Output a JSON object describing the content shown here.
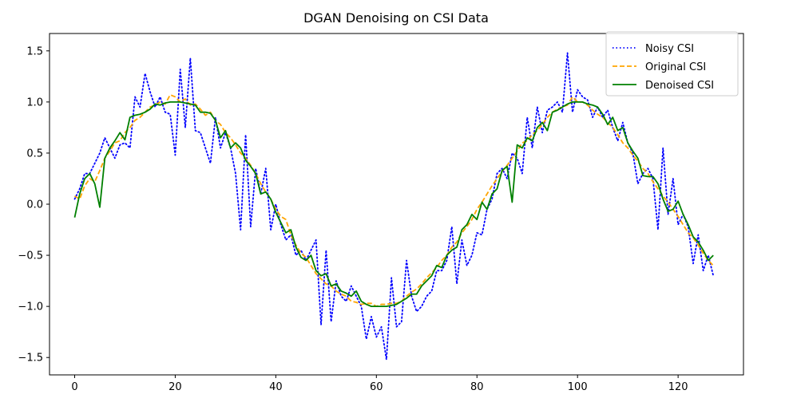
{
  "chart_data": {
    "type": "line",
    "title": "DGAN Denoising on CSI Data",
    "xlabel": "",
    "ylabel": "",
    "xlim": [
      -5,
      133
    ],
    "ylim": [
      -1.67,
      1.67
    ],
    "xticks": [
      0,
      20,
      40,
      60,
      80,
      100,
      120
    ],
    "yticks": [
      -1.5,
      -1.0,
      -0.5,
      0.0,
      0.5,
      1.0,
      1.5
    ],
    "xtick_labels": [
      "0",
      "20",
      "40",
      "60",
      "80",
      "100",
      "120"
    ],
    "ytick_labels": [
      "−1.5",
      "−1.0",
      "−0.5",
      "0.0",
      "0.5",
      "1.0",
      "1.5"
    ],
    "grid": false,
    "legend_position": "top-right",
    "series": [
      {
        "name": "Noisy CSI",
        "color": "#0000ff",
        "style": "dotted",
        "x": [
          0,
          1,
          2,
          3,
          4,
          5,
          6,
          7,
          8,
          9,
          10,
          11,
          12,
          13,
          14,
          15,
          16,
          17,
          18,
          19,
          20,
          21,
          22,
          23,
          24,
          25,
          26,
          27,
          28,
          29,
          30,
          31,
          32,
          33,
          34,
          35,
          36,
          37,
          38,
          39,
          40,
          41,
          42,
          43,
          44,
          45,
          46,
          47,
          48,
          49,
          50,
          51,
          52,
          53,
          54,
          55,
          56,
          57,
          58,
          59,
          60,
          61,
          62,
          63,
          64,
          65,
          66,
          67,
          68,
          69,
          70,
          71,
          72,
          73,
          74,
          75,
          76,
          77,
          78,
          79,
          80,
          81,
          82,
          83,
          84,
          85,
          86,
          87,
          88,
          89,
          90,
          91,
          92,
          93,
          94,
          95,
          96,
          97,
          98,
          99,
          100,
          101,
          102,
          103,
          104,
          105,
          106,
          107,
          108,
          109,
          110,
          111,
          112,
          113,
          114,
          115,
          116,
          117,
          118,
          119,
          120,
          121,
          122,
          123,
          124,
          125,
          126,
          127
        ],
        "y": [
          0.05,
          0.15,
          0.3,
          0.3,
          0.4,
          0.5,
          0.65,
          0.55,
          0.45,
          0.58,
          0.6,
          0.55,
          1.05,
          0.95,
          1.28,
          1.1,
          0.95,
          1.05,
          0.9,
          0.88,
          0.48,
          1.32,
          0.75,
          1.43,
          0.72,
          0.7,
          0.55,
          0.4,
          0.85,
          0.55,
          0.7,
          0.55,
          0.3,
          -0.25,
          0.68,
          -0.22,
          0.35,
          0.1,
          0.35,
          -0.25,
          0.0,
          -0.2,
          -0.35,
          -0.3,
          -0.5,
          -0.45,
          -0.55,
          -0.45,
          -0.35,
          -1.18,
          -0.45,
          -1.15,
          -0.75,
          -0.9,
          -0.95,
          -0.8,
          -0.9,
          -1.0,
          -1.32,
          -1.1,
          -1.3,
          -1.2,
          -1.52,
          -0.72,
          -1.2,
          -1.15,
          -0.55,
          -0.9,
          -1.05,
          -1.0,
          -0.9,
          -0.85,
          -0.65,
          -0.65,
          -0.55,
          -0.22,
          -0.78,
          -0.35,
          -0.6,
          -0.5,
          -0.28,
          -0.3,
          -0.05,
          0.05,
          0.3,
          0.35,
          0.25,
          0.5,
          0.45,
          0.3,
          0.85,
          0.55,
          0.95,
          0.7,
          0.92,
          0.95,
          1.0,
          0.9,
          1.48,
          0.9,
          1.12,
          1.05,
          1.02,
          0.85,
          0.95,
          0.85,
          0.92,
          0.75,
          0.62,
          0.8,
          0.6,
          0.5,
          0.2,
          0.3,
          0.35,
          0.25,
          -0.25,
          0.55,
          -0.1,
          0.25,
          -0.2,
          -0.1,
          -0.22,
          -0.58,
          -0.3,
          -0.65,
          -0.5,
          -0.7
        ]
      },
      {
        "name": "Original CSI",
        "color": "#ffa500",
        "style": "dashed",
        "x": [
          0,
          1,
          2,
          3,
          4,
          5,
          6,
          7,
          8,
          9,
          10,
          11,
          12,
          13,
          14,
          15,
          16,
          17,
          18,
          19,
          20,
          21,
          22,
          23,
          24,
          25,
          26,
          27,
          28,
          29,
          30,
          31,
          32,
          33,
          34,
          35,
          36,
          37,
          38,
          39,
          40,
          41,
          42,
          43,
          44,
          45,
          46,
          47,
          48,
          49,
          50,
          51,
          52,
          53,
          54,
          55,
          56,
          57,
          58,
          59,
          60,
          61,
          62,
          63,
          64,
          65,
          66,
          67,
          68,
          69,
          70,
          71,
          72,
          73,
          74,
          75,
          76,
          77,
          78,
          79,
          80,
          81,
          82,
          83,
          84,
          85,
          86,
          87,
          88,
          89,
          90,
          91,
          92,
          93,
          94,
          95,
          96,
          97,
          98,
          99,
          100,
          101,
          102,
          103,
          104,
          105,
          106,
          107,
          108,
          109,
          110,
          111,
          112,
          113,
          114,
          115,
          116,
          117,
          118,
          119,
          120,
          121,
          122,
          123,
          124,
          125,
          126,
          127
        ],
        "y": [
          0.08,
          0.05,
          0.18,
          0.25,
          0.22,
          0.33,
          0.45,
          0.52,
          0.6,
          0.62,
          0.7,
          0.75,
          0.82,
          0.85,
          0.9,
          0.95,
          0.97,
          1.0,
          0.98,
          1.07,
          1.05,
          1.0,
          1.03,
          0.97,
          0.98,
          0.93,
          0.87,
          0.9,
          0.82,
          0.78,
          0.7,
          0.65,
          0.58,
          0.5,
          0.45,
          0.38,
          0.3,
          0.2,
          0.12,
          0.05,
          -0.05,
          -0.12,
          -0.15,
          -0.3,
          -0.4,
          -0.48,
          -0.52,
          -0.6,
          -0.68,
          -0.73,
          -0.78,
          -0.8,
          -0.85,
          -0.88,
          -0.9,
          -0.95,
          -0.96,
          -0.98,
          -0.97,
          -0.97,
          -1.0,
          -0.98,
          -0.98,
          -0.97,
          -0.97,
          -0.95,
          -0.9,
          -0.86,
          -0.83,
          -0.78,
          -0.72,
          -0.67,
          -0.62,
          -0.55,
          -0.5,
          -0.42,
          -0.37,
          -0.28,
          -0.22,
          -0.15,
          -0.05,
          0.02,
          0.1,
          0.18,
          0.25,
          0.32,
          0.38,
          0.45,
          0.52,
          0.6,
          0.62,
          0.68,
          0.72,
          0.78,
          0.85,
          0.9,
          0.93,
          0.95,
          0.97,
          1.05,
          1.0,
          1.0,
          0.97,
          0.92,
          0.88,
          0.85,
          0.8,
          0.75,
          0.68,
          0.6,
          0.55,
          0.48,
          0.42,
          0.35,
          0.3,
          0.22,
          0.15,
          0.08,
          0.02,
          -0.05,
          -0.12,
          -0.2,
          -0.28,
          -0.33,
          -0.4,
          -0.48,
          -0.55,
          -0.6
        ]
      },
      {
        "name": "Denoised CSI",
        "color": "#008000",
        "style": "solid",
        "x": [
          0,
          1,
          2,
          3,
          4,
          5,
          6,
          7,
          8,
          9,
          10,
          11,
          12,
          13,
          14,
          15,
          16,
          17,
          18,
          19,
          20,
          21,
          22,
          23,
          24,
          25,
          26,
          27,
          28,
          29,
          30,
          31,
          32,
          33,
          34,
          35,
          36,
          37,
          38,
          39,
          40,
          41,
          42,
          43,
          44,
          45,
          46,
          47,
          48,
          49,
          50,
          51,
          52,
          53,
          54,
          55,
          56,
          57,
          58,
          59,
          60,
          61,
          62,
          63,
          64,
          65,
          66,
          67,
          68,
          69,
          70,
          71,
          72,
          73,
          74,
          75,
          76,
          77,
          78,
          79,
          80,
          81,
          82,
          83,
          84,
          85,
          86,
          87,
          88,
          89,
          90,
          91,
          92,
          93,
          94,
          95,
          96,
          97,
          98,
          99,
          100,
          101,
          102,
          103,
          104,
          105,
          106,
          107,
          108,
          109,
          110,
          111,
          112,
          113,
          114,
          115,
          116,
          117,
          118,
          119,
          120,
          121,
          122,
          123,
          124,
          125,
          126,
          127
        ],
        "y": [
          -0.13,
          0.1,
          0.25,
          0.3,
          0.2,
          -0.03,
          0.45,
          0.55,
          0.62,
          0.7,
          0.63,
          0.85,
          0.87,
          0.88,
          0.9,
          0.93,
          0.98,
          0.97,
          0.99,
          1.0,
          1.0,
          1.0,
          0.99,
          0.98,
          0.97,
          0.9,
          0.9,
          0.89,
          0.82,
          0.65,
          0.72,
          0.55,
          0.6,
          0.55,
          0.43,
          0.37,
          0.3,
          0.1,
          0.12,
          0.05,
          -0.08,
          -0.18,
          -0.28,
          -0.25,
          -0.42,
          -0.52,
          -0.55,
          -0.5,
          -0.65,
          -0.7,
          -0.68,
          -0.8,
          -0.78,
          -0.85,
          -0.87,
          -0.9,
          -0.85,
          -0.95,
          -0.98,
          -1.0,
          -1.0,
          -1.0,
          -1.0,
          -0.99,
          -0.98,
          -0.95,
          -0.92,
          -0.88,
          -0.88,
          -0.8,
          -0.75,
          -0.7,
          -0.6,
          -0.62,
          -0.5,
          -0.45,
          -0.42,
          -0.25,
          -0.2,
          -0.1,
          -0.15,
          0.02,
          -0.05,
          0.1,
          0.15,
          0.33,
          0.37,
          0.02,
          0.58,
          0.55,
          0.65,
          0.62,
          0.75,
          0.8,
          0.72,
          0.9,
          0.92,
          0.95,
          0.98,
          1.0,
          1.0,
          1.0,
          0.98,
          0.97,
          0.95,
          0.88,
          0.78,
          0.85,
          0.72,
          0.75,
          0.6,
          0.52,
          0.45,
          0.28,
          0.27,
          0.27,
          0.2,
          0.05,
          -0.07,
          -0.05,
          0.03,
          -0.1,
          -0.2,
          -0.32,
          -0.37,
          -0.45,
          -0.55,
          -0.5
        ]
      }
    ]
  }
}
